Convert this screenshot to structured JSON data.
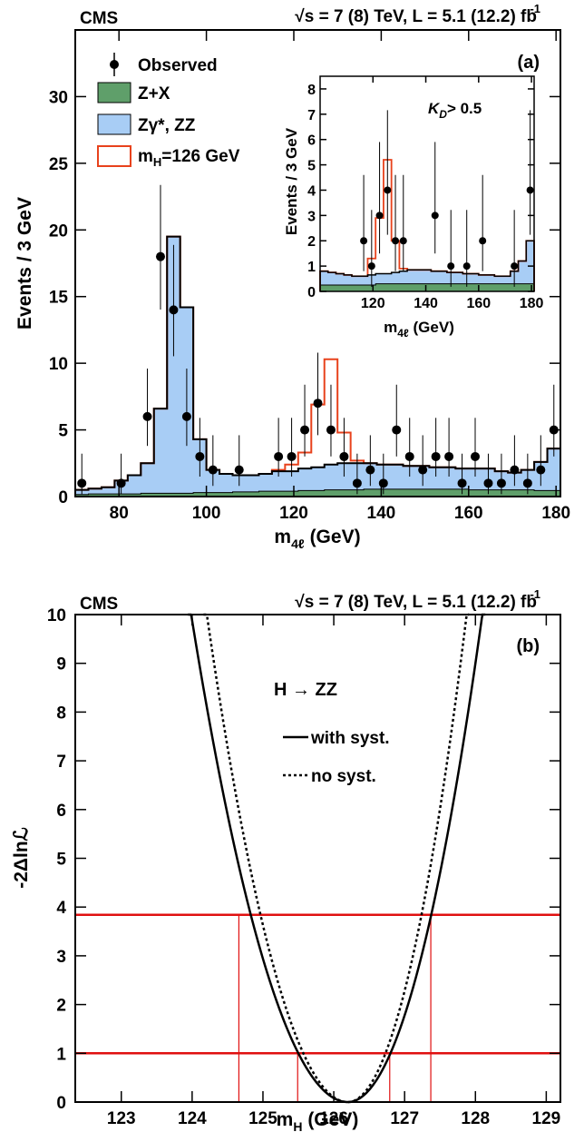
{
  "chart_data": [
    {
      "type": "histogram",
      "panel_label": "(a)",
      "experiment": "CMS",
      "energy_lumi": "√s = 7 (8) TeV, L = 5.1 (12.2) fb",
      "energy_lumi_sup": "-1",
      "xlabel": "m",
      "xlabel_sub": "4ℓ",
      "xlabel_unit": " (GeV)",
      "ylabel": "Events / 3 GeV",
      "xlim": [
        70,
        181
      ],
      "ylim": [
        0,
        35
      ],
      "xticks": [
        80,
        100,
        120,
        140,
        160,
        180
      ],
      "yticks": [
        0,
        5,
        10,
        15,
        20,
        25,
        30
      ],
      "bin_width": 3,
      "bin_start": 70,
      "colors": {
        "zx": "#5f9f6a",
        "zz": "#a8cdf5",
        "signal": "#e8421c",
        "outline": "#000000"
      },
      "legend": [
        {
          "key": "obs",
          "label": "Observed"
        },
        {
          "key": "zx",
          "label": "Z+X"
        },
        {
          "key": "zz",
          "label": "Zγ*, ZZ"
        },
        {
          "key": "sig",
          "label": "m",
          "sub": "H",
          "tail": "=126 GeV"
        }
      ],
      "series": [
        {
          "name": "Z+X",
          "values": [
            0.15,
            0.2,
            0.2,
            0.2,
            0.2,
            0.25,
            0.25,
            0.25,
            0.25,
            0.3,
            0.3,
            0.3,
            0.35,
            0.35,
            0.4,
            0.4,
            0.4,
            0.45,
            0.45,
            0.5,
            0.5,
            0.5,
            0.55,
            0.55,
            0.55,
            0.55,
            0.55,
            0.55,
            0.55,
            0.55,
            0.5,
            0.5,
            0.5,
            0.5,
            0.5,
            0.45,
            0.45
          ]
        },
        {
          "name": "Zγ*, ZZ (total background)",
          "values": [
            0.5,
            0.6,
            0.7,
            1.2,
            1.6,
            2.5,
            6.6,
            19.5,
            14.2,
            4.3,
            2.0,
            1.7,
            1.6,
            1.6,
            1.7,
            1.9,
            1.9,
            2.1,
            2.2,
            2.4,
            2.5,
            2.5,
            2.5,
            2.4,
            2.4,
            2.3,
            2.3,
            2.2,
            2.2,
            2.1,
            2.1,
            2.1,
            1.9,
            1.8,
            2.0,
            2.6,
            3.6
          ]
        },
        {
          "name": "m_H=126 GeV (total)",
          "values": [
            0.5,
            0.6,
            0.7,
            1.2,
            1.6,
            2.5,
            6.6,
            19.5,
            14.2,
            4.3,
            2.0,
            1.7,
            1.6,
            1.6,
            1.7,
            2.0,
            2.4,
            3.3,
            6.9,
            10.3,
            4.8,
            2.7,
            2.5,
            2.4,
            2.4,
            2.3,
            2.3,
            2.2,
            2.2,
            2.1,
            2.1,
            2.1,
            1.9,
            1.8,
            2.0,
            2.6,
            3.6
          ]
        }
      ],
      "observed": [
        {
          "x": 71.5,
          "y": 1
        },
        {
          "x": 80.5,
          "y": 1
        },
        {
          "x": 86.5,
          "y": 6
        },
        {
          "x": 89.5,
          "y": 18
        },
        {
          "x": 92.5,
          "y": 14
        },
        {
          "x": 95.5,
          "y": 6
        },
        {
          "x": 98.5,
          "y": 3
        },
        {
          "x": 101.5,
          "y": 2
        },
        {
          "x": 107.5,
          "y": 2
        },
        {
          "x": 116.5,
          "y": 3
        },
        {
          "x": 119.5,
          "y": 3
        },
        {
          "x": 122.5,
          "y": 5
        },
        {
          "x": 125.5,
          "y": 7
        },
        {
          "x": 128.5,
          "y": 5
        },
        {
          "x": 131.5,
          "y": 3
        },
        {
          "x": 134.5,
          "y": 1
        },
        {
          "x": 137.5,
          "y": 2
        },
        {
          "x": 140.5,
          "y": 1
        },
        {
          "x": 143.5,
          "y": 5
        },
        {
          "x": 146.5,
          "y": 3
        },
        {
          "x": 149.5,
          "y": 2
        },
        {
          "x": 152.5,
          "y": 3
        },
        {
          "x": 155.5,
          "y": 3
        },
        {
          "x": 158.5,
          "y": 1
        },
        {
          "x": 161.5,
          "y": 3
        },
        {
          "x": 164.5,
          "y": 1
        },
        {
          "x": 167.5,
          "y": 1
        },
        {
          "x": 170.5,
          "y": 2
        },
        {
          "x": 173.5,
          "y": 1
        },
        {
          "x": 176.5,
          "y": 2
        },
        {
          "x": 179.5,
          "y": 5
        }
      ],
      "inset": {
        "cut_label_pre": "K",
        "cut_label_sub": "D",
        "cut_label_post": "> 0.5",
        "xlabel": "m",
        "xlabel_sub": "4ℓ",
        "xlabel_unit": " (GeV)",
        "ylabel": "Events / 3 GeV",
        "xlim": [
          100,
          181
        ],
        "ylim": [
          0,
          8.5
        ],
        "xticks": [
          120,
          140,
          160,
          180
        ],
        "yticks": [
          0,
          1,
          2,
          3,
          4,
          5,
          6,
          7,
          8
        ],
        "bin_width": 3,
        "bin_start": 100,
        "zx": [
          0.25,
          0.25,
          0.25,
          0.25,
          0.25,
          0.25,
          0.25,
          0.3,
          0.3,
          0.3,
          0.3,
          0.3,
          0.3,
          0.3,
          0.3,
          0.3,
          0.3,
          0.3,
          0.3,
          0.3,
          0.3,
          0.3,
          0.3,
          0.3,
          0.3,
          0.3,
          0.3
        ],
        "background": [
          0.8,
          0.75,
          0.7,
          0.65,
          0.6,
          0.6,
          0.65,
          0.7,
          0.7,
          0.75,
          0.8,
          0.85,
          0.85,
          0.85,
          0.8,
          0.8,
          0.75,
          0.75,
          0.7,
          0.7,
          0.65,
          0.65,
          0.6,
          0.6,
          0.8,
          1.2,
          2.0
        ],
        "signal_total": [
          0.8,
          0.75,
          0.7,
          0.65,
          0.6,
          0.6,
          1.3,
          2.9,
          5.2,
          2.0,
          0.9,
          0.85,
          0.85,
          0.85,
          0.8,
          0.8,
          0.75,
          0.75,
          0.7,
          0.7,
          0.65,
          0.65,
          0.6,
          0.6,
          0.8,
          1.2,
          2.0
        ],
        "observed": [
          {
            "x": 116.5,
            "y": 2
          },
          {
            "x": 119.5,
            "y": 1
          },
          {
            "x": 122.5,
            "y": 3
          },
          {
            "x": 125.5,
            "y": 4
          },
          {
            "x": 128.5,
            "y": 2
          },
          {
            "x": 131.5,
            "y": 2
          },
          {
            "x": 143.5,
            "y": 3
          },
          {
            "x": 149.5,
            "y": 1
          },
          {
            "x": 155.5,
            "y": 1
          },
          {
            "x": 161.5,
            "y": 2
          },
          {
            "x": 173.5,
            "y": 1
          },
          {
            "x": 179.5,
            "y": 4
          }
        ]
      }
    },
    {
      "type": "line",
      "panel_label": "(b)",
      "experiment": "CMS",
      "energy_lumi": "√s = 7 (8) TeV, L = 5.1 (12.2) fb",
      "energy_lumi_sup": "-1",
      "channel": "H → ZZ",
      "xlabel": "m",
      "xlabel_sub": "H",
      "xlabel_unit": " (GeV)",
      "ylabel": "-2Δlnℒ",
      "xlim": [
        122.35,
        129.2
      ],
      "ylim": [
        0,
        10
      ],
      "xticks": [
        123,
        124,
        125,
        126,
        127,
        128,
        129
      ],
      "yticks": [
        0,
        1,
        2,
        3,
        4,
        5,
        6,
        7,
        8,
        9,
        10
      ],
      "legend": [
        {
          "key": "syst",
          "label": "with syst."
        },
        {
          "key": "nosyst",
          "label": "no syst."
        }
      ],
      "series": [
        {
          "name": "with syst.",
          "minimum": 126.2,
          "left_width_1sigma": 0.7,
          "right_width_1sigma": 0.6
        },
        {
          "name": "no syst.",
          "minimum": 126.2,
          "left_width_1sigma": 0.63,
          "right_width_1sigma": 0.53
        }
      ],
      "reference_lines": [
        1.0,
        3.84
      ],
      "crossings": [
        124.66,
        125.49,
        126.79,
        127.37
      ],
      "colors": {
        "reference": "#e01010",
        "curve": "#000000"
      }
    }
  ]
}
